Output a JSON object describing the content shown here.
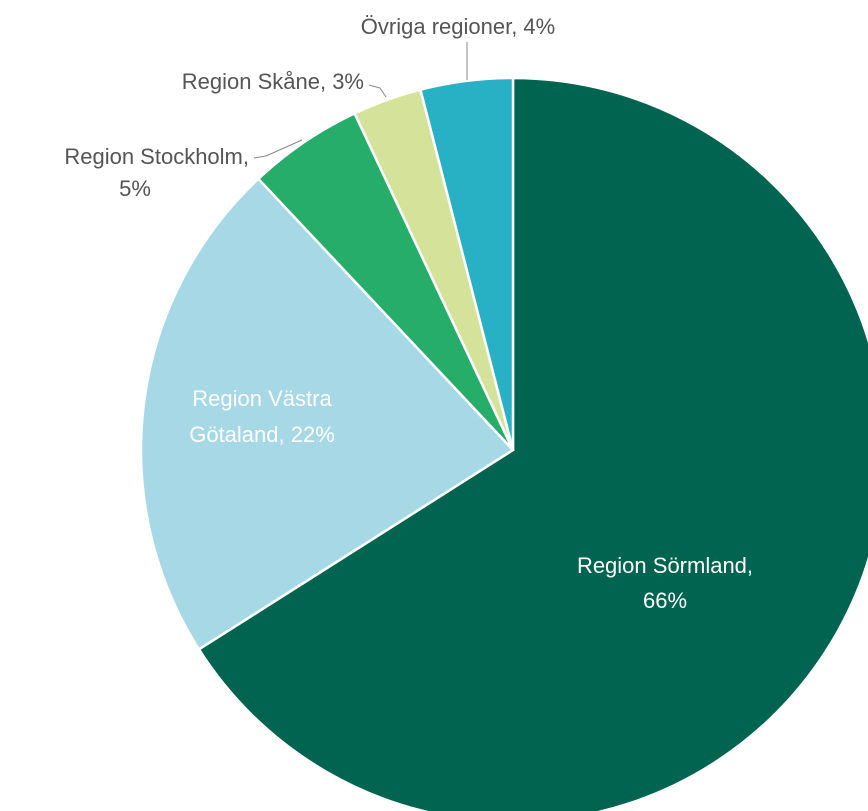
{
  "chart_data": {
    "type": "pie",
    "values": [
      66,
      22,
      5,
      3,
      4
    ],
    "value_labels": [
      [
        "Region Sörmland,",
        "66%"
      ],
      [
        "Region Västra",
        "Götaland, 22%"
      ],
      [
        "Region Stockholm,",
        "5%"
      ],
      [
        "Region Skåne, 3%"
      ],
      [
        "Övriga regioner, 4%"
      ]
    ],
    "colors": [
      "#006450",
      "#a6d8e6",
      "#27ad6a",
      "#d5e29a",
      "#28b0c4"
    ]
  }
}
